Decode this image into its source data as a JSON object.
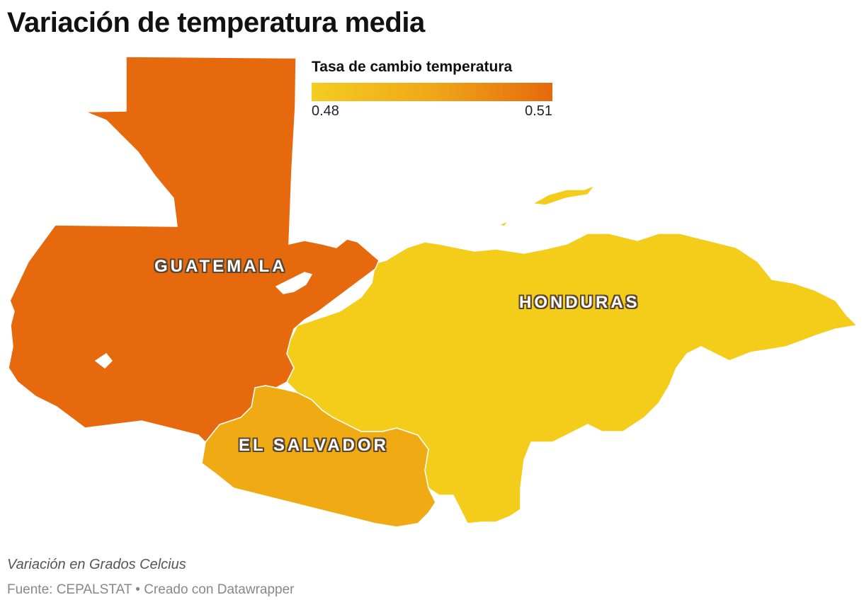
{
  "title": "Variación de temperatura media",
  "legend": {
    "title": "Tasa de cambio temperatura",
    "min_label": "0.48",
    "max_label": "0.51",
    "min_value": 0.48,
    "max_value": 0.51,
    "color_low": "#f4cc22",
    "color_high": "#e6690d"
  },
  "regions": [
    {
      "name": "Guatemala",
      "label": "GUATEMALA",
      "color": "#e6690d"
    },
    {
      "name": "Honduras",
      "label": "HONDURAS",
      "color": "#f4cc1a"
    },
    {
      "name": "El Salvador",
      "label": "EL SALVADOR",
      "color": "#f0ab14"
    }
  ],
  "subtitle": "Variación en Grados Celcius",
  "source": "Fuente: CEPALSTAT • Creado con Datawrapper"
}
